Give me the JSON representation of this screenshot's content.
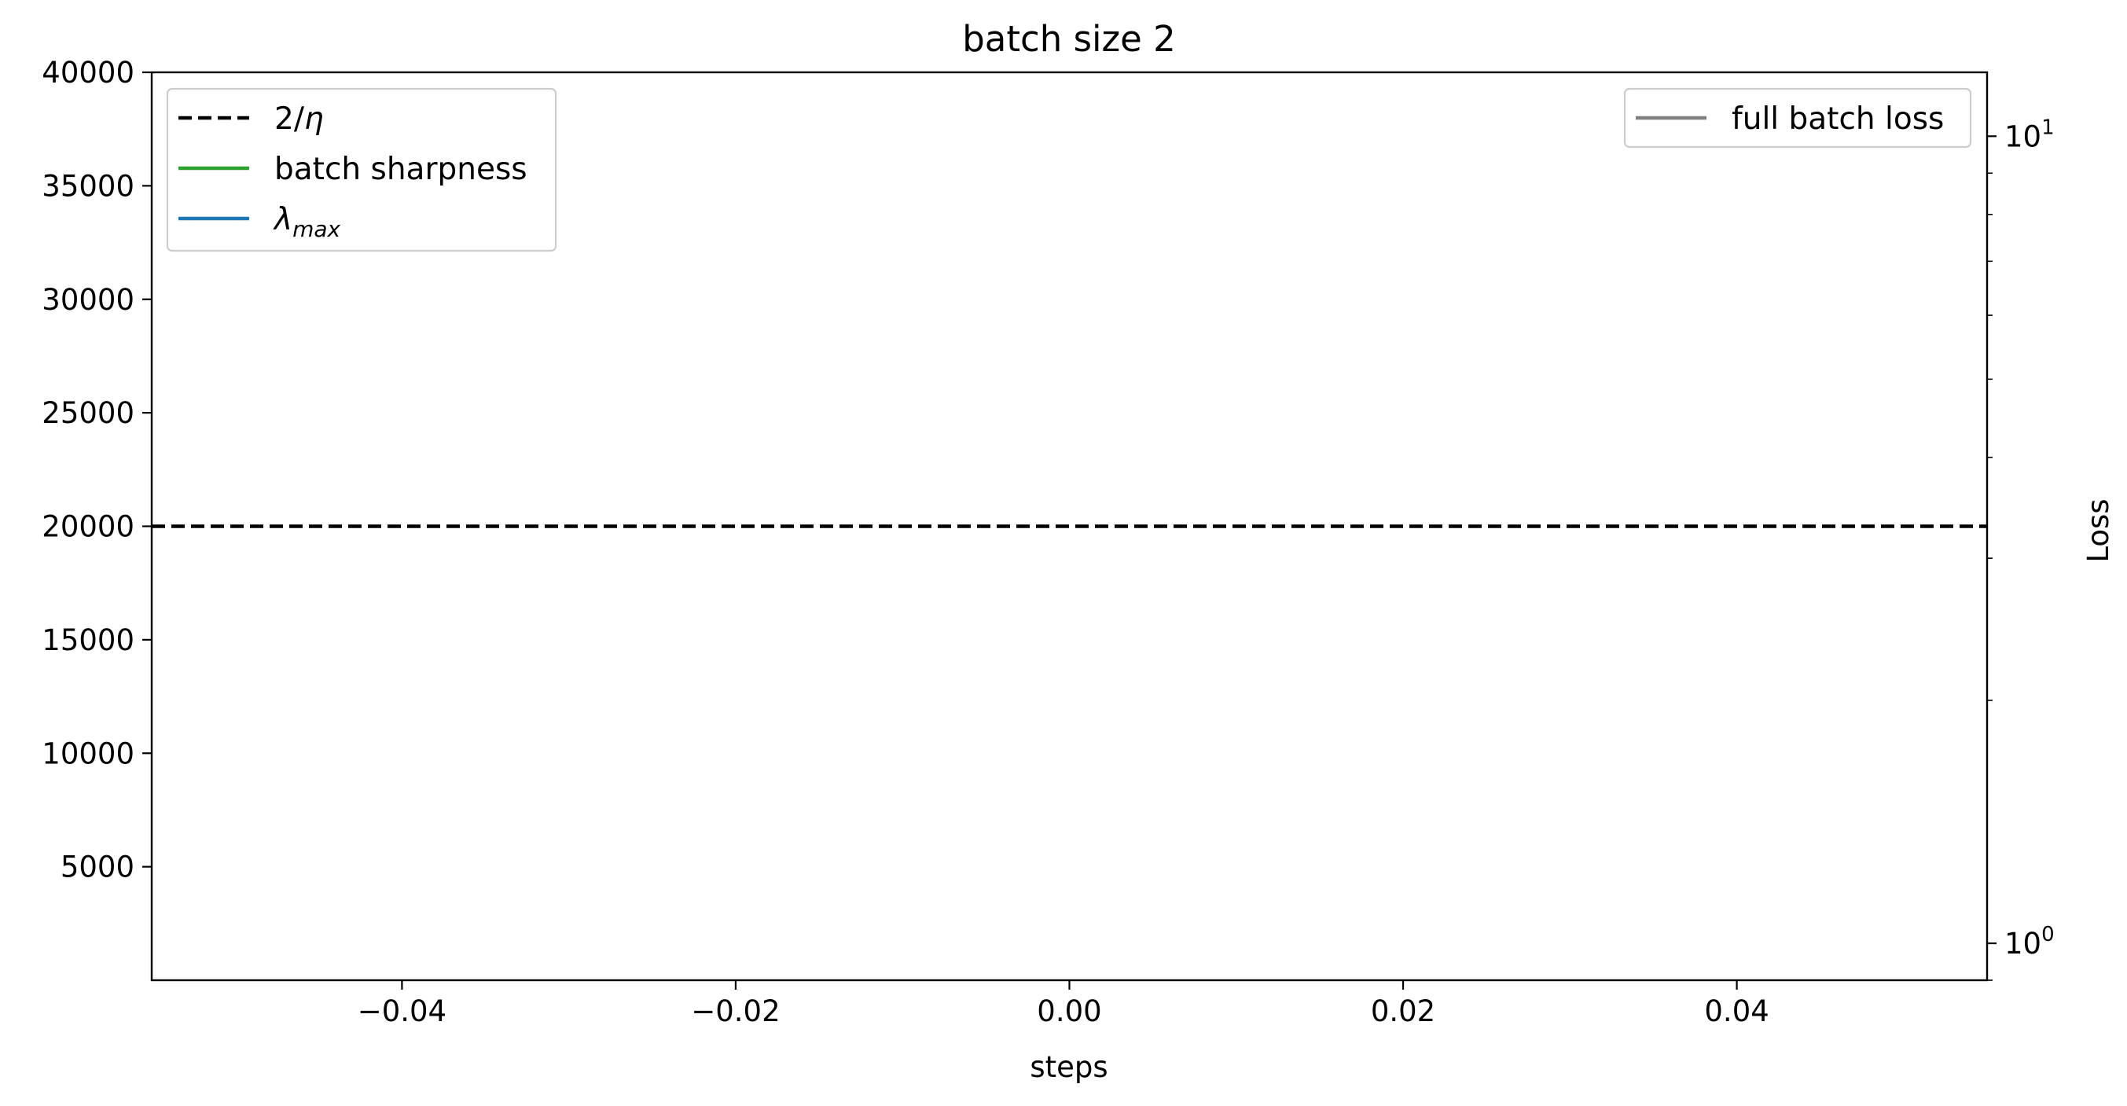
{
  "chart_data": {
    "type": "line",
    "title": "batch size 2",
    "xlabel": "steps",
    "ylabel": "",
    "y2label": "Loss",
    "xlim": [
      -0.055,
      0.055
    ],
    "ylim": [
      0,
      40000
    ],
    "y2lim": [
      0.9,
      12
    ],
    "y2scale": "log",
    "x_ticks": [
      -0.04,
      -0.02,
      0.0,
      0.02,
      0.04
    ],
    "x_tick_labels": [
      "−0.04",
      "−0.02",
      "0.00",
      "0.02",
      "0.04"
    ],
    "y_ticks": [
      5000,
      10000,
      15000,
      20000,
      25000,
      30000,
      35000,
      40000
    ],
    "y_tick_labels": [
      "5000",
      "10000",
      "15000",
      "20000",
      "25000",
      "30000",
      "35000",
      "40000"
    ],
    "y2_major_ticks": [
      1,
      10
    ],
    "y2_tick_labels": [
      {
        "base": "10",
        "exp": "0"
      },
      {
        "base": "10",
        "exp": "1"
      }
    ],
    "y2_minor_ticks": [
      0.9,
      2,
      3,
      4,
      5,
      6,
      7,
      8,
      9
    ],
    "reference_lines": [
      {
        "name": "2/η",
        "y": 20000,
        "style": "dashed",
        "color": "#000000"
      }
    ],
    "series": [
      {
        "name": "batch sharpness",
        "color": "#2ca02c",
        "x": [],
        "y": []
      },
      {
        "name": "λmax",
        "color": "#1f77b4",
        "x": [],
        "y": []
      },
      {
        "name": "full batch loss",
        "color": "#808080",
        "axis": "right",
        "x": [],
        "y": []
      }
    ],
    "legend_left": {
      "placement": "upper-left",
      "entries": [
        {
          "label": "2/",
          "label_italic": "η",
          "color": "#000000",
          "style": "dashed"
        },
        {
          "label": "batch sharpness",
          "color": "#2ca02c",
          "style": "solid"
        },
        {
          "label_italic": "λ",
          "label_sub": "max",
          "color": "#1f77b4",
          "style": "solid"
        }
      ]
    },
    "legend_right": {
      "placement": "upper-right",
      "entries": [
        {
          "label": "full batch loss",
          "color": "#808080",
          "style": "solid"
        }
      ]
    },
    "grid": false
  }
}
